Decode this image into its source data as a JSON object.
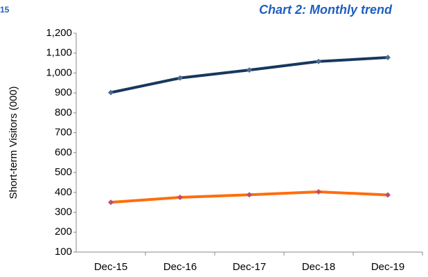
{
  "chart_data": {
    "type": "line",
    "annotations": [
      "15"
    ],
    "title": "Chart 2: Monthly trend",
    "ylabel": "Short-term Visitors (000)",
    "categories": [
      "Dec-15",
      "Dec-16",
      "Dec-17",
      "Dec-18",
      "Dec-19"
    ],
    "series": [
      {
        "color": "#17375e",
        "marker_color": "#4f6b8f",
        "values": [
          902,
          975,
          1015,
          1058,
          1078
        ]
      },
      {
        "color": "#ff6d0d",
        "marker_color": "#b5526e",
        "values": [
          350,
          375,
          388,
          403,
          387
        ]
      }
    ],
    "ylim": [
      100,
      1200
    ],
    "yticks": [
      100,
      200,
      300,
      400,
      500,
      600,
      700,
      800,
      900,
      {
        "value": 1000,
        "label": "1,000"
      },
      {
        "value": 1100,
        "label": "1,100"
      },
      {
        "value": 1200,
        "label": "1,200"
      }
    ],
    "grid": false
  }
}
